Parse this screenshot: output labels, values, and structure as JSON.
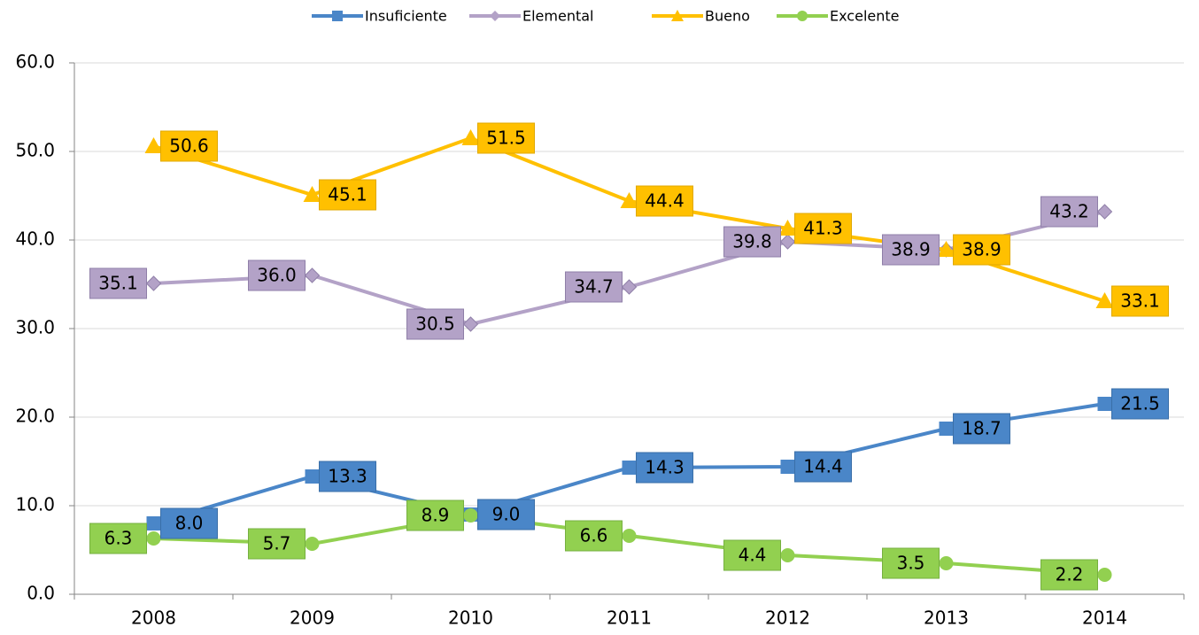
{
  "chart_data": {
    "type": "line",
    "categories": [
      "2008",
      "2009",
      "2010",
      "2011",
      "2012",
      "2013",
      "2014"
    ],
    "series": [
      {
        "name": "Insuficiente",
        "color": "#4a86c8",
        "marker": "square",
        "values": [
          8.0,
          13.3,
          9.0,
          14.3,
          14.4,
          18.7,
          21.5
        ],
        "value_labels": [
          "8.0",
          "13.3",
          "9.0",
          "14.3",
          "14.4",
          "18.7",
          "21.5"
        ]
      },
      {
        "name": "Elemental",
        "color": "#b3a2c7",
        "marker": "diamond",
        "values": [
          35.1,
          36.0,
          30.5,
          34.7,
          39.8,
          38.9,
          43.2
        ],
        "value_labels": [
          "35.1",
          "36.0",
          "30.5",
          "34.7",
          "39.8",
          "38.9",
          "43.2"
        ]
      },
      {
        "name": "Bueno",
        "color": "#ffc000",
        "marker": "triangle",
        "values": [
          50.6,
          45.1,
          51.5,
          44.4,
          41.3,
          38.9,
          33.1
        ],
        "value_labels": [
          "50.6",
          "45.1",
          "51.5",
          "44.4",
          "41.3",
          "38.9",
          "33.1"
        ]
      },
      {
        "name": "Excelente",
        "color": "#92d050",
        "marker": "circle",
        "values": [
          6.3,
          5.7,
          8.9,
          6.6,
          4.4,
          3.5,
          2.2
        ],
        "value_labels": [
          "6.3",
          "5.7",
          "8.9",
          "6.6",
          "4.4",
          "3.5",
          "2.2"
        ]
      }
    ],
    "ylim": [
      0,
      60
    ],
    "yticks": [
      {
        "value": 0,
        "label": "0.0"
      },
      {
        "value": 10,
        "label": "10.0"
      },
      {
        "value": 20,
        "label": "20.0"
      },
      {
        "value": 30,
        "label": "30.0"
      },
      {
        "value": 40,
        "label": "40.0"
      },
      {
        "value": 50,
        "label": "50.0"
      },
      {
        "value": 60,
        "label": "60.0"
      }
    ],
    "grid": true,
    "legend": "top"
  }
}
